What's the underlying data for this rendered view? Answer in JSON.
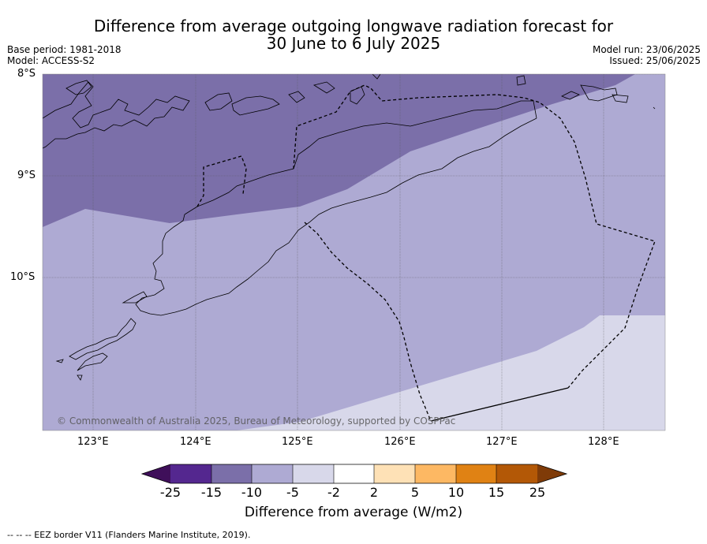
{
  "title_line1": "Difference from average outgoing longwave radiation forecast for",
  "title_line2": "30 June to 6 July 2025",
  "base_period": "Base period: 1981-2018",
  "model": "Model: ACCESS-S2",
  "model_run": "Model run: 23/06/2025",
  "issued": "Issued: 25/06/2025",
  "lat_labels": [
    "8°S",
    "9°S",
    "10°S"
  ],
  "lon_labels": [
    "123°E",
    "124°E",
    "125°E",
    "126°E",
    "127°E",
    "128°E"
  ],
  "copyright": "© Commonwealth of Australia 2025, Bureau of Meteorology, supported by COSPPac",
  "colorbar": {
    "tick_labels": [
      "-25",
      "-15",
      "-10",
      "-5",
      "-2",
      "2",
      "5",
      "10",
      "15",
      "25"
    ],
    "colors": [
      "#3f0f5a",
      "#54278f",
      "#7b6fa9",
      "#aeaad3",
      "#d8d8ea",
      "#ffffff",
      "#fee1b6",
      "#fdb863",
      "#e08214",
      "#b35806",
      "#7f3b08"
    ],
    "label": "Difference from average (W/m2)"
  },
  "legend_note": "--  --  -- EEZ border V11 (Flanders Marine Institute, 2019)."
}
